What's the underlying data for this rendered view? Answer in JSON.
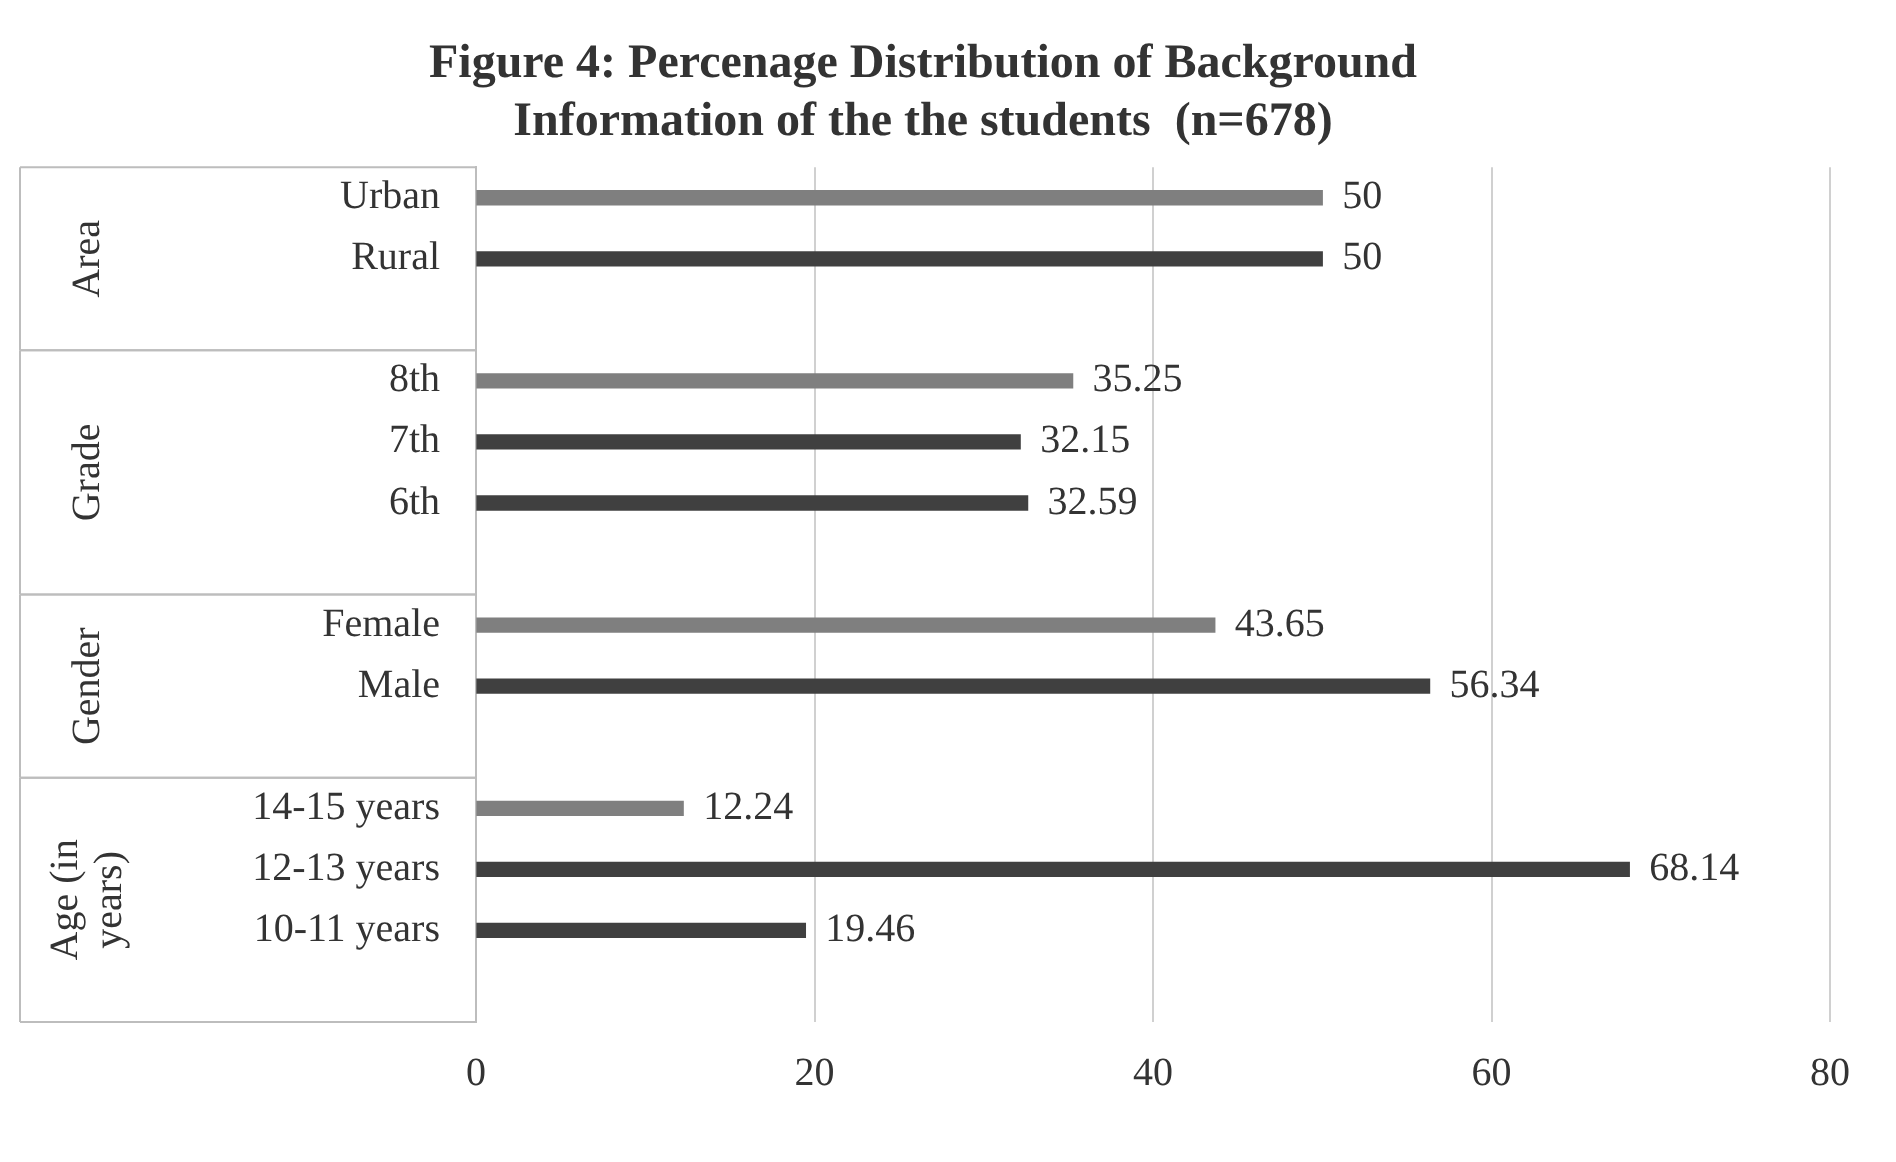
{
  "chart_data": {
    "type": "bar",
    "orientation": "horizontal",
    "title": "Figure 4: Percenage Distribution of Background Information of the the students  (n=678)",
    "categories": [
      "Urban",
      "Rural",
      null,
      "8th",
      "7th",
      "6th",
      null,
      "Female",
      "Male",
      null,
      "14-15 years",
      "12-13 years",
      "10-11 years",
      null
    ],
    "values": [
      50,
      50,
      null,
      35.25,
      32.15,
      32.59,
      null,
      43.65,
      56.34,
      null,
      12.24,
      68.14,
      19.46,
      null
    ],
    "colors": [
      "#7f7f7f",
      "#404040",
      null,
      "#7f7f7f",
      "#404040",
      "#404040",
      null,
      "#7f7f7f",
      "#404040",
      null,
      "#7f7f7f",
      "#404040",
      "#404040",
      null
    ],
    "annotations": [
      "Area",
      "Grade",
      "Gender",
      "Age (in years)"
    ],
    "xlim": [
      0,
      80
    ],
    "xticks": [
      0,
      20,
      40,
      60,
      80
    ],
    "grid": "x",
    "legend": false,
    "data_labels": true
  }
}
